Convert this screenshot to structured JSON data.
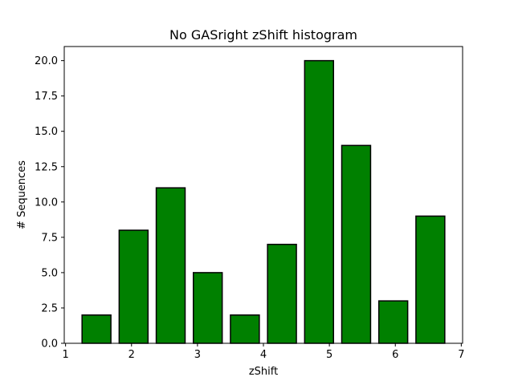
{
  "chart_data": {
    "type": "bar",
    "title": "No GASright zShift histogram",
    "xlabel": "zShift",
    "ylabel": "# Sequences",
    "xlim": [
      0.98,
      7.02
    ],
    "ylim": [
      0,
      21
    ],
    "xticks": [
      1,
      2,
      3,
      4,
      5,
      6,
      7
    ],
    "yticks": [
      0.0,
      2.5,
      5.0,
      7.5,
      10.0,
      12.5,
      15.0,
      17.5,
      20.0
    ],
    "ytick_labels": [
      "0.0",
      "2.5",
      "5.0",
      "7.5",
      "10.0",
      "12.5",
      "15.0",
      "17.5",
      "20.0"
    ],
    "bin_edges": [
      1.25,
      1.6875,
      1.8125,
      2.25,
      2.375,
      2.8125,
      2.9375,
      3.375,
      3.5,
      3.9375,
      4.0625,
      4.5,
      4.625,
      5.0625,
      5.1875,
      5.625,
      5.75,
      6.1875,
      6.3125,
      6.75
    ],
    "bars": [
      {
        "left": 1.25,
        "right": 1.6875,
        "value": 2
      },
      {
        "left": 1.8125,
        "right": 2.25,
        "value": 8
      },
      {
        "left": 2.375,
        "right": 2.8125,
        "value": 11
      },
      {
        "left": 2.9375,
        "right": 3.375,
        "value": 5
      },
      {
        "left": 3.5,
        "right": 3.9375,
        "value": 2
      },
      {
        "left": 4.0625,
        "right": 4.5,
        "value": 7
      },
      {
        "left": 4.625,
        "right": 5.0625,
        "value": 20
      },
      {
        "left": 5.1875,
        "right": 5.625,
        "value": 14
      },
      {
        "left": 5.75,
        "right": 6.1875,
        "value": 3
      },
      {
        "left": 6.3125,
        "right": 6.75,
        "value": 9
      }
    ],
    "bar_color": "#008000",
    "edge_color": "#000000",
    "grid": false,
    "legend": "none"
  }
}
